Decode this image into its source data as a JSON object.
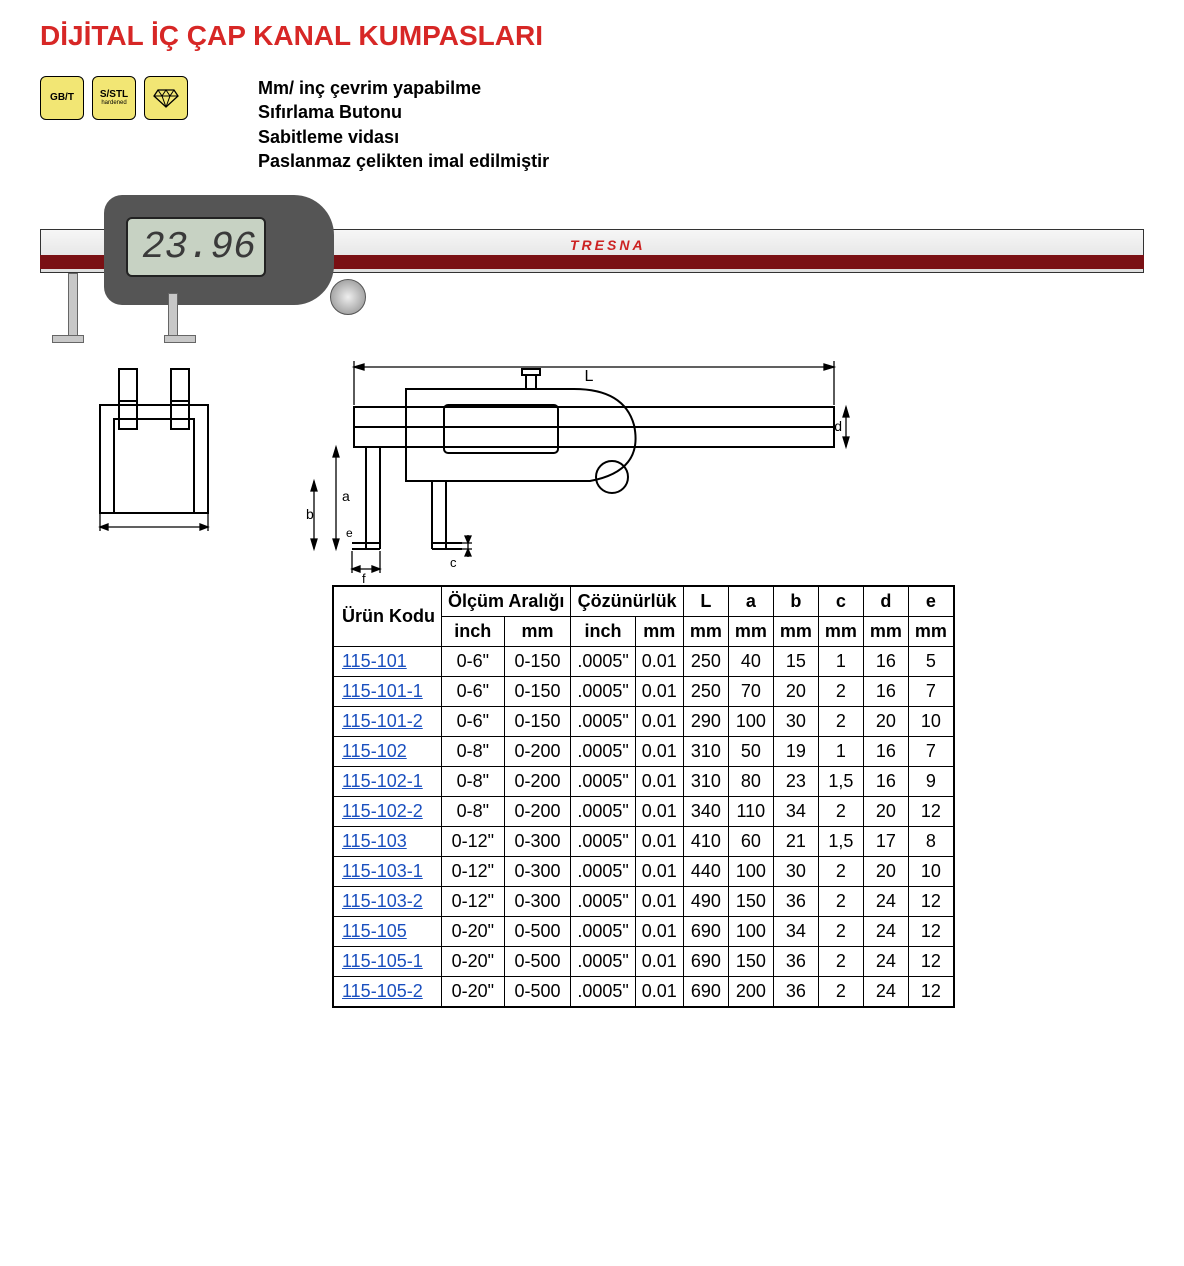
{
  "title": "DİJİTAL İÇ ÇAP KANAL KUMPASLARI",
  "badges": [
    {
      "label": "GB/T",
      "sub": ""
    },
    {
      "label": "S/STL",
      "sub": "hardened"
    },
    {
      "label": "◈",
      "sub": ""
    }
  ],
  "features": [
    "Mm/ inç çevrim yapabilme",
    "Sıfırlama Butonu",
    "Sabitleme vidası",
    "Paslanmaz çelikten imal edilmiştir"
  ],
  "display_value": "23.96",
  "brand": "TRESNA",
  "diagram_labels": {
    "L": "L",
    "a": "a",
    "b": "b",
    "c": "c",
    "d": "d",
    "e": "e",
    "f": "f"
  },
  "table": {
    "group_headers": {
      "code": "Ürün Kodu",
      "range": "Ölçüm Aralığı",
      "resolution": "Çözünürlük",
      "L": "L",
      "a": "a",
      "b": "b",
      "c": "c",
      "d": "d",
      "e": "e"
    },
    "sub_headers": {
      "inch": "inch",
      "mm": "mm"
    },
    "columns_units": [
      "inch",
      "mm",
      "inch",
      "mm",
      "mm",
      "mm",
      "mm",
      "mm",
      "mm",
      "mm"
    ],
    "rows": [
      {
        "code": "115-101",
        "range_in": "0-6\"",
        "range_mm": "0-150",
        "res_in": ".0005\"",
        "res_mm": "0.01",
        "L": "250",
        "a": "40",
        "b": "15",
        "c": "1",
        "d": "16",
        "e": "5"
      },
      {
        "code": "115-101-1",
        "range_in": "0-6\"",
        "range_mm": "0-150",
        "res_in": ".0005\"",
        "res_mm": "0.01",
        "L": "250",
        "a": "70",
        "b": "20",
        "c": "2",
        "d": "16",
        "e": "7"
      },
      {
        "code": "115-101-2",
        "range_in": "0-6\"",
        "range_mm": "0-150",
        "res_in": ".0005\"",
        "res_mm": "0.01",
        "L": "290",
        "a": "100",
        "b": "30",
        "c": "2",
        "d": "20",
        "e": "10"
      },
      {
        "code": "115-102",
        "range_in": "0-8\"",
        "range_mm": "0-200",
        "res_in": ".0005\"",
        "res_mm": "0.01",
        "L": "310",
        "a": "50",
        "b": "19",
        "c": "1",
        "d": "16",
        "e": "7"
      },
      {
        "code": "115-102-1",
        "range_in": "0-8\"",
        "range_mm": "0-200",
        "res_in": ".0005\"",
        "res_mm": "0.01",
        "L": "310",
        "a": "80",
        "b": "23",
        "c": "1,5",
        "d": "16",
        "e": "9"
      },
      {
        "code": "115-102-2",
        "range_in": "0-8\"",
        "range_mm": "0-200",
        "res_in": ".0005\"",
        "res_mm": "0.01",
        "L": "340",
        "a": "110",
        "b": "34",
        "c": "2",
        "d": "20",
        "e": "12"
      },
      {
        "code": "115-103",
        "range_in": "0-12\"",
        "range_mm": "0-300",
        "res_in": ".0005\"",
        "res_mm": "0.01",
        "L": "410",
        "a": "60",
        "b": "21",
        "c": "1,5",
        "d": "17",
        "e": "8"
      },
      {
        "code": "115-103-1",
        "range_in": "0-12\"",
        "range_mm": "0-300",
        "res_in": ".0005\"",
        "res_mm": "0.01",
        "L": "440",
        "a": "100",
        "b": "30",
        "c": "2",
        "d": "20",
        "e": "10"
      },
      {
        "code": "115-103-2",
        "range_in": "0-12\"",
        "range_mm": "0-300",
        "res_in": ".0005\"",
        "res_mm": "0.01",
        "L": "490",
        "a": "150",
        "b": "36",
        "c": "2",
        "d": "24",
        "e": "12"
      },
      {
        "code": "115-105",
        "range_in": "0-20\"",
        "range_mm": "0-500",
        "res_in": ".0005\"",
        "res_mm": "0.01",
        "L": "690",
        "a": "100",
        "b": "34",
        "c": "2",
        "d": "24",
        "e": "12"
      },
      {
        "code": "115-105-1",
        "range_in": "0-20\"",
        "range_mm": "0-500",
        "res_in": ".0005\"",
        "res_mm": "0.01",
        "L": "690",
        "a": "150",
        "b": "36",
        "c": "2",
        "d": "24",
        "e": "12"
      },
      {
        "code": "115-105-2",
        "range_in": "0-20\"",
        "range_mm": "0-500",
        "res_in": ".0005\"",
        "res_mm": "0.01",
        "L": "690",
        "a": "200",
        "b": "36",
        "c": "2",
        "d": "24",
        "e": "12"
      }
    ]
  },
  "colors": {
    "title": "#d72726",
    "link": "#1a4fbf",
    "badge_bg": "#f2e674",
    "border": "#000000",
    "background": "#ffffff"
  },
  "fonts": {
    "title_size_pt": 21,
    "body_size_pt": 14,
    "table_size_pt": 14,
    "family": "Arial"
  }
}
